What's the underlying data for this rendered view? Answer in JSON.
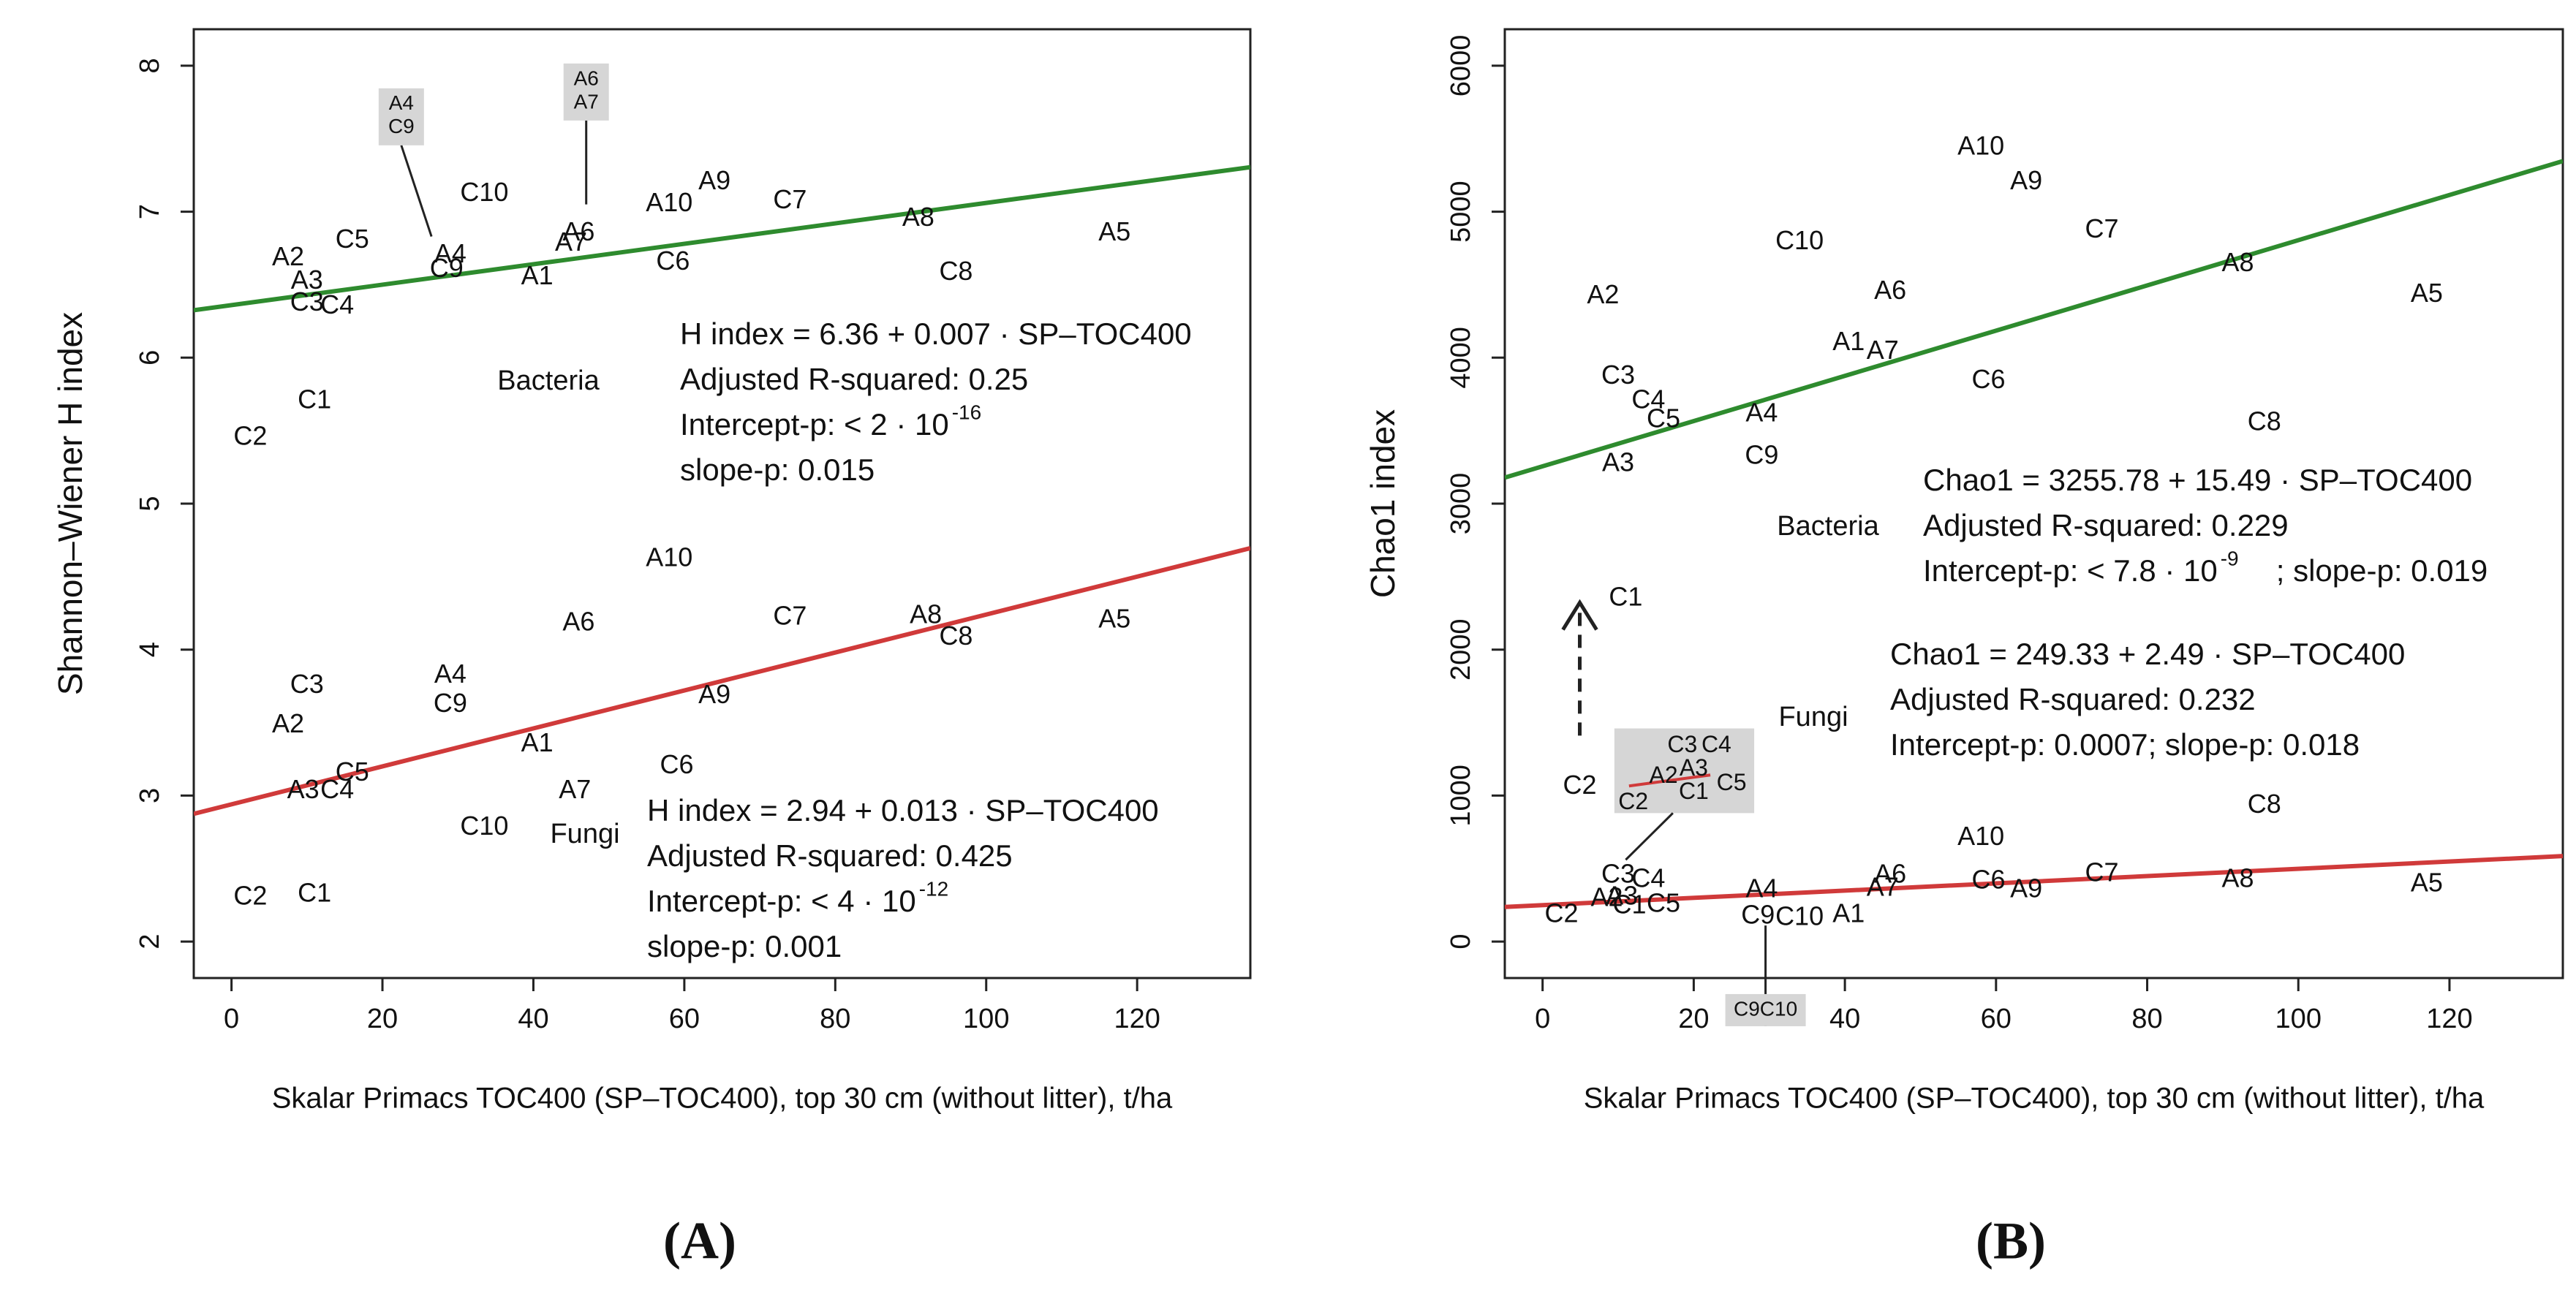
{
  "panels": [
    {
      "label": "(A)"
    },
    {
      "label": "(B)"
    }
  ],
  "chart_data": [
    {
      "type": "scatter",
      "xlabel": "Skalar Primacs TOC400 (SP–TOC400), top 30 cm (without litter), t/ha",
      "ylabel": "Shannon–Wiener H index",
      "xlim": [
        -5,
        135
      ],
      "ylim": [
        1.75,
        8.25
      ],
      "xticks": [
        "0",
        "20",
        "40",
        "60",
        "80",
        "100",
        "120"
      ],
      "yticks": [
        "2",
        "3",
        "4",
        "5",
        "6",
        "7",
        "8"
      ],
      "series": [
        {
          "name": "Bacteria",
          "color": "#2e8b2e",
          "fit": {
            "intercept": 6.36,
            "slope": 0.007
          },
          "annotation": {
            "equation": "H index = 6.36 + 0.007 · SP–TOC400",
            "r2": "Adjusted R-squared: 0.25",
            "intercept_p": "Intercept-p: < 2 · 10",
            "intercept_p_exp": "-16",
            "slope_p": "slope-p: 0.015"
          },
          "points": [
            {
              "label": "C2",
              "x": 2.5,
              "y": 5.45
            },
            {
              "label": "C1",
              "x": 11,
              "y": 5.7
            },
            {
              "label": "A2",
              "x": 7.5,
              "y": 6.68
            },
            {
              "label": "A3",
              "x": 10,
              "y": 6.52
            },
            {
              "label": "C3",
              "x": 10,
              "y": 6.37
            },
            {
              "label": "C4",
              "x": 14,
              "y": 6.35
            },
            {
              "label": "C5",
              "x": 16,
              "y": 6.8
            },
            {
              "label": "A4",
              "x": 29,
              "y": 6.7
            },
            {
              "label": "C9",
              "x": 28.5,
              "y": 6.6
            },
            {
              "label": "C10",
              "x": 33.5,
              "y": 7.12
            },
            {
              "label": "A1",
              "x": 40.5,
              "y": 6.55
            },
            {
              "label": "A6",
              "x": 46,
              "y": 6.85
            },
            {
              "label": "A7",
              "x": 45,
              "y": 6.78
            },
            {
              "label": "A10",
              "x": 58,
              "y": 7.05
            },
            {
              "label": "A9",
              "x": 64,
              "y": 7.2
            },
            {
              "label": "C6",
              "x": 58.5,
              "y": 6.65
            },
            {
              "label": "C7",
              "x": 74,
              "y": 7.07
            },
            {
              "label": "A8",
              "x": 91,
              "y": 6.95
            },
            {
              "label": "C8",
              "x": 96,
              "y": 6.58
            },
            {
              "label": "A5",
              "x": 117,
              "y": 6.85
            }
          ],
          "callouts": [
            {
              "lines": [
                "A4",
                "C9"
              ],
              "x": 22.5,
              "y": 7.65,
              "tx": 26.5,
              "ty": 6.83
            },
            {
              "lines": [
                "A6",
                "A7"
              ],
              "x": 47,
              "y": 7.82,
              "tx": 47,
              "ty": 7.05
            }
          ]
        },
        {
          "name": "Fungi",
          "color": "#d03a3a",
          "fit": {
            "intercept": 2.94,
            "slope": 0.013
          },
          "annotation": {
            "equation": "H index = 2.94 + 0.013 · SP–TOC400",
            "r2": "Adjusted R-squared: 0.425",
            "intercept_p": "Intercept-p: < 4 · 10",
            "intercept_p_exp": "-12",
            "slope_p": "slope-p: 0.001"
          },
          "points": [
            {
              "label": "C2",
              "x": 2.5,
              "y": 2.3
            },
            {
              "label": "C1",
              "x": 11,
              "y": 2.32
            },
            {
              "label": "A3",
              "x": 9.5,
              "y": 3.03
            },
            {
              "label": "C4",
              "x": 14,
              "y": 3.03
            },
            {
              "label": "C5",
              "x": 16,
              "y": 3.15
            },
            {
              "label": "A2",
              "x": 7.5,
              "y": 3.48
            },
            {
              "label": "C3",
              "x": 10,
              "y": 3.75
            },
            {
              "label": "A4",
              "x": 29,
              "y": 3.82
            },
            {
              "label": "C9",
              "x": 29,
              "y": 3.62
            },
            {
              "label": "C10",
              "x": 33.5,
              "y": 2.78
            },
            {
              "label": "A1",
              "x": 40.5,
              "y": 3.35
            },
            {
              "label": "A7",
              "x": 45.5,
              "y": 3.03
            },
            {
              "label": "A6",
              "x": 46,
              "y": 4.18
            },
            {
              "label": "A10",
              "x": 58,
              "y": 4.62
            },
            {
              "label": "C6",
              "x": 59,
              "y": 3.2
            },
            {
              "label": "A9",
              "x": 64,
              "y": 3.68
            },
            {
              "label": "C7",
              "x": 74,
              "y": 4.22
            },
            {
              "label": "A8",
              "x": 92,
              "y": 4.23
            },
            {
              "label": "C8",
              "x": 96,
              "y": 4.08
            },
            {
              "label": "A5",
              "x": 117,
              "y": 4.2
            }
          ],
          "callouts": []
        }
      ]
    },
    {
      "type": "scatter",
      "xlabel": "Skalar Primacs TOC400 (SP–TOC400), top 30 cm (without litter), t/ha",
      "ylabel": "Chao1 index",
      "xlim": [
        -5,
        135
      ],
      "ylim": [
        -250,
        6250
      ],
      "xticks": [
        "0",
        "20",
        "40",
        "60",
        "80",
        "100",
        "120"
      ],
      "yticks": [
        "0",
        "1000",
        "2000",
        "3000",
        "4000",
        "5000",
        "6000"
      ],
      "series": [
        {
          "name": "Bacteria",
          "color": "#2e8b2e",
          "fit": {
            "intercept": 3255.78,
            "slope": 15.49
          },
          "annotation": {
            "equation": "Chao1 = 3255.78 + 15.49 · SP–TOC400",
            "r2": "Adjusted R-squared: 0.229",
            "intercept_p": "Intercept-p: < 7.8 · 10",
            "intercept_p_exp": "-9",
            "slope_p": "slope-p: 0.019"
          },
          "points": [
            {
              "label": "C1",
              "x": 11,
              "y": 2350
            },
            {
              "label": "A2",
              "x": 8,
              "y": 4420
            },
            {
              "label": "C3",
              "x": 10,
              "y": 3870
            },
            {
              "label": "C4",
              "x": 14,
              "y": 3700
            },
            {
              "label": "C5",
              "x": 16,
              "y": 3570
            },
            {
              "label": "A3",
              "x": 10,
              "y": 3270
            },
            {
              "label": "A4",
              "x": 29,
              "y": 3610
            },
            {
              "label": "C9",
              "x": 29,
              "y": 3320
            },
            {
              "label": "C10",
              "x": 34,
              "y": 4790
            },
            {
              "label": "A1",
              "x": 40.5,
              "y": 4100
            },
            {
              "label": "A7",
              "x": 45,
              "y": 4040
            },
            {
              "label": "A6",
              "x": 46,
              "y": 4450
            },
            {
              "label": "C6",
              "x": 59,
              "y": 3840
            },
            {
              "label": "A10",
              "x": 58,
              "y": 5440
            },
            {
              "label": "A9",
              "x": 64,
              "y": 5200
            },
            {
              "label": "C7",
              "x": 74,
              "y": 4870
            },
            {
              "label": "A8",
              "x": 92,
              "y": 4640
            },
            {
              "label": "C8",
              "x": 95.5,
              "y": 3550
            },
            {
              "label": "A5",
              "x": 117,
              "y": 4430
            }
          ],
          "callouts": [],
          "moved": {
            "label": "C2",
            "x": 2.5,
            "y": 1060
          }
        },
        {
          "name": "Fungi",
          "color": "#d03a3a",
          "fit": {
            "intercept": 249.33,
            "slope": 2.49
          },
          "annotation": {
            "equation": "Chao1 = 249.33 + 2.49 · SP–TOC400",
            "r2": "Adjusted R-squared: 0.232",
            "intercept_p": "Intercept-p: 0.0007;  slope-p: 0.018",
            "intercept_p_exp": "",
            "slope_p": ""
          },
          "points": [
            {
              "label": "C2",
              "x": 2.5,
              "y": 180
            },
            {
              "label": "A2",
              "x": 8.5,
              "y": 290
            },
            {
              "label": "A3",
              "x": 10.5,
              "y": 300
            },
            {
              "label": "C3",
              "x": 10,
              "y": 450
            },
            {
              "label": "C4",
              "x": 14,
              "y": 420
            },
            {
              "label": "C1",
              "x": 11.5,
              "y": 240
            },
            {
              "label": "C5",
              "x": 16,
              "y": 250
            },
            {
              "label": "A4",
              "x": 29,
              "y": 350
            },
            {
              "label": "C9",
              "x": 28.5,
              "y": 170
            },
            {
              "label": "C10",
              "x": 34,
              "y": 160
            },
            {
              "label": "A1",
              "x": 40.5,
              "y": 180
            },
            {
              "label": "A7",
              "x": 45,
              "y": 360
            },
            {
              "label": "A6",
              "x": 46,
              "y": 450
            },
            {
              "label": "A10",
              "x": 58,
              "y": 710
            },
            {
              "label": "C6",
              "x": 59,
              "y": 410
            },
            {
              "label": "A9",
              "x": 64,
              "y": 350
            },
            {
              "label": "C7",
              "x": 74,
              "y": 460
            },
            {
              "label": "A8",
              "x": 92,
              "y": 420
            },
            {
              "label": "C8",
              "x": 95.5,
              "y": 930
            },
            {
              "label": "A5",
              "x": 117,
              "y": 390
            }
          ],
          "callouts": [
            {
              "lines": [
                "C9C10"
              ],
              "x": 29.5,
              "y": -470,
              "tx": 29.5,
              "ty": 110
            }
          ]
        }
      ],
      "inset": {
        "points": [
          {
            "label": "C3",
            "x": 18.5,
            "y": 1340
          },
          {
            "label": "C4",
            "x": 23,
            "y": 1340
          },
          {
            "label": "A2",
            "x": 16,
            "y": 1130
          },
          {
            "label": "A3",
            "x": 20,
            "y": 1180
          },
          {
            "label": "C1",
            "x": 20,
            "y": 1020
          },
          {
            "label": "C5",
            "x": 25,
            "y": 1080
          },
          {
            "label": "C2",
            "x": 12,
            "y": 950
          }
        ],
        "range_x": [
          9.5,
          28
        ],
        "range_y": [
          880,
          1460
        ]
      }
    }
  ]
}
